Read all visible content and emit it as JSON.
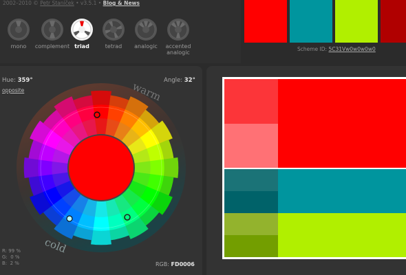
{
  "header": {
    "credits_prefix": "2002–2010 © ",
    "author": "Petr Staníček",
    "version": " • v3.5.1 • ",
    "blog_link": "Blog & News"
  },
  "modes": [
    {
      "label": "mono",
      "active": false
    },
    {
      "label": "complement",
      "active": false
    },
    {
      "label": "triad",
      "active": true
    },
    {
      "label": "tetrad",
      "active": false
    },
    {
      "label": "analogic",
      "active": false
    },
    {
      "label": "accented analogic",
      "active": false
    }
  ],
  "top_swatches": [
    "#ff0000",
    "#00959e",
    "#b1ef00",
    "#b00000"
  ],
  "scheme": {
    "label": "Scheme ID: ",
    "id": "5C31Vw0w0w0w0"
  },
  "wheel": {
    "hue_label": "Hue:",
    "hue_value": "359°",
    "angle_label": "Angle:",
    "angle_value": "32°",
    "opposite_link": "opposite",
    "warm_label": "warm",
    "cold_label": "cold",
    "center_color": "#ff0000"
  },
  "rgb": {
    "r": "R: 99 %",
    "g": "G:  0 %",
    "b": "B:  2 %",
    "hex_label": "RGB: ",
    "hex_value": "FD0006"
  },
  "colors": {
    "red": "#ff0000",
    "red_dark": "#fc3539",
    "red_light": "#ff7175",
    "teal": "#00959e",
    "teal_dark": "#1b7377",
    "teal_darker": "#006269",
    "lime": "#b1ef00",
    "lime_dark": "#93b32d",
    "lime_darker": "#739e00"
  }
}
